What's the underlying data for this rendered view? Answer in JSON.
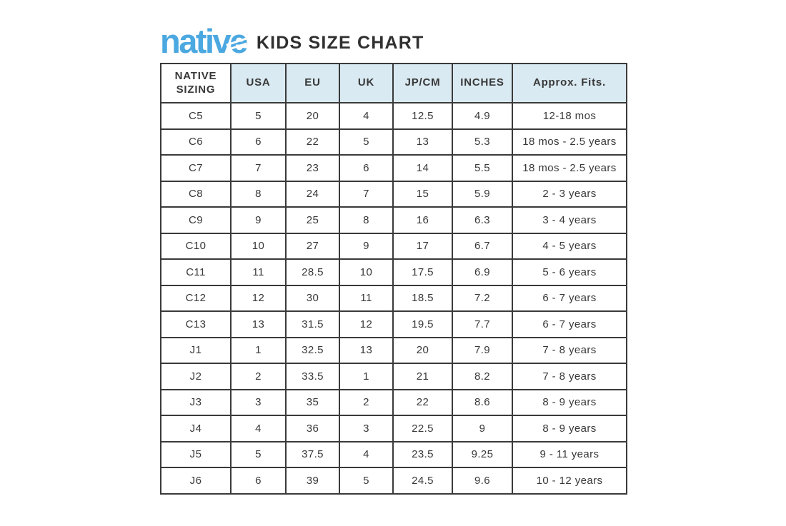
{
  "brand": {
    "logo_text": "native",
    "title": "KIDS SIZE CHART"
  },
  "colors": {
    "logo_blue": "#4BA8E0",
    "header_bg": "#DAEAF2",
    "border_color": "#3A3A3A",
    "text_color": "#383838"
  },
  "chart_data": {
    "type": "table",
    "title": "KIDS SIZE CHART",
    "columns": [
      "NATIVE SIZING",
      "USA",
      "EU",
      "UK",
      "JP/CM",
      "INCHES",
      "Approx. Fits."
    ],
    "rows": [
      [
        "C5",
        "5",
        "20",
        "4",
        "12.5",
        "4.9",
        "12-18 mos"
      ],
      [
        "C6",
        "6",
        "22",
        "5",
        "13",
        "5.3",
        "18 mos - 2.5 years"
      ],
      [
        "C7",
        "7",
        "23",
        "6",
        "14",
        "5.5",
        "18 mos - 2.5 years"
      ],
      [
        "C8",
        "8",
        "24",
        "7",
        "15",
        "5.9",
        "2 - 3 years"
      ],
      [
        "C9",
        "9",
        "25",
        "8",
        "16",
        "6.3",
        "3 - 4 years"
      ],
      [
        "C10",
        "10",
        "27",
        "9",
        "17",
        "6.7",
        "4 - 5 years"
      ],
      [
        "C11",
        "11",
        "28.5",
        "10",
        "17.5",
        "6.9",
        "5 - 6 years"
      ],
      [
        "C12",
        "12",
        "30",
        "11",
        "18.5",
        "7.2",
        "6 - 7 years"
      ],
      [
        "C13",
        "13",
        "31.5",
        "12",
        "19.5",
        "7.7",
        "6 - 7 years"
      ],
      [
        "J1",
        "1",
        "32.5",
        "13",
        "20",
        "7.9",
        "7 - 8 years"
      ],
      [
        "J2",
        "2",
        "33.5",
        "1",
        "21",
        "8.2",
        "7 - 8 years"
      ],
      [
        "J3",
        "3",
        "35",
        "2",
        "22",
        "8.6",
        "8 - 9 years"
      ],
      [
        "J4",
        "4",
        "36",
        "3",
        "22.5",
        "9",
        "8 - 9 years"
      ],
      [
        "J5",
        "5",
        "37.5",
        "4",
        "23.5",
        "9.25",
        "9 - 11 years"
      ],
      [
        "J6",
        "6",
        "39",
        "5",
        "24.5",
        "9.6",
        "10 - 12 years"
      ]
    ]
  }
}
